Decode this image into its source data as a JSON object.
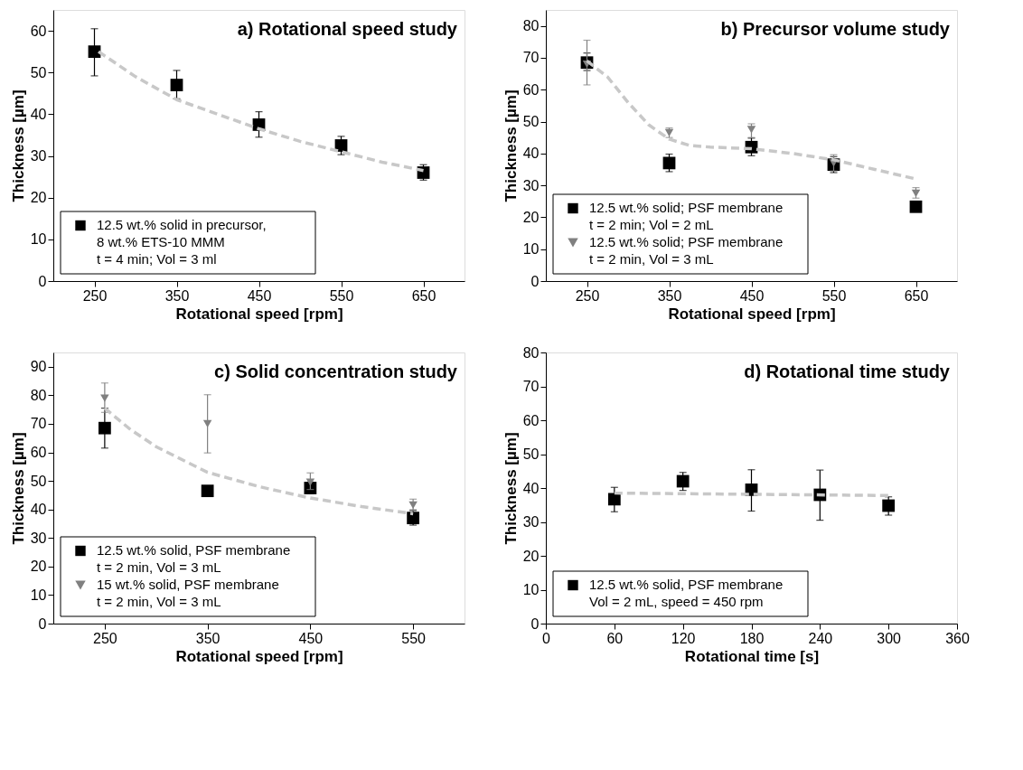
{
  "chart_data": [
    {
      "type": "scatter",
      "title": "a) Rotational speed study",
      "xlabel": "Rotational speed [rpm]",
      "ylabel": "Thickness [µm]",
      "xlim": [
        200,
        700
      ],
      "xticks": [
        250,
        350,
        450,
        550,
        650
      ],
      "ylim": [
        0,
        65
      ],
      "yticks": [
        0,
        10,
        20,
        30,
        40,
        50,
        60
      ],
      "legend": "bottom left",
      "x": [
        250,
        350,
        450,
        550,
        650
      ],
      "series": [
        {
          "name": "12.5 wt.% solid in precursor,\n8 wt.% ETS-10 MMM\nt = 4 min; Vol = 3 ml",
          "color": "#000000",
          "marker": "square",
          "values": [
            55,
            47,
            37.5,
            32.5,
            26
          ],
          "errors": [
            [
              49.2,
              60.5
            ],
            [
              43.7,
              50.5
            ],
            [
              34.5,
              40.6
            ],
            [
              30.3,
              34.7
            ],
            [
              24.2,
              27.9
            ]
          ]
        },
        {
          "type": "line",
          "color": "#c8c8c8",
          "line_style": "dashed",
          "marker": "none",
          "x": [
            255,
            300,
            350,
            400,
            450,
            500,
            550,
            600,
            650
          ],
          "values": [
            55,
            49,
            43.5,
            40,
            36.5,
            33.5,
            31,
            28.5,
            26.5
          ]
        }
      ]
    },
    {
      "type": "scatter",
      "title": "b) Precursor volume study",
      "xlabel": "Rotational speed [rpm]",
      "ylabel": "Thickness [µm]",
      "xlim": [
        200,
        700
      ],
      "xticks": [
        250,
        350,
        450,
        550,
        650
      ],
      "ylim": [
        0,
        85
      ],
      "yticks": [
        0,
        10,
        20,
        30,
        40,
        50,
        60,
        70,
        80
      ],
      "legend": "bottom left",
      "x": [
        250,
        350,
        450,
        550,
        650
      ],
      "series": [
        {
          "name": "12.5 wt.% solid; PSF membrane\nt = 2 min; Vol = 2 mL",
          "color": "#000000",
          "marker": "square",
          "values": [
            68.5,
            37,
            42,
            36.5,
            23.3
          ],
          "errors": [
            [
              66,
              71.5
            ],
            [
              34.3,
              39.8
            ],
            [
              39.3,
              44.8
            ],
            [
              34,
              39
            ],
            null
          ]
        },
        {
          "name": "12.5 wt.% solid; PSF membrane\nt = 2 min, Vol = 3 mL",
          "color": "#808080",
          "marker": "triangle",
          "values": [
            68,
            46.5,
            47.5,
            37,
            27.5
          ],
          "errors": [
            [
              61.5,
              75.5
            ],
            [
              45,
              48
            ],
            [
              45,
              49.3
            ],
            [
              34.5,
              39.6
            ],
            [
              26,
              29.3
            ]
          ]
        },
        {
          "type": "line",
          "color": "#c8c8c8",
          "line_style": "dashed",
          "marker": "none",
          "x": [
            250,
            275,
            300,
            325,
            350,
            375,
            400,
            450,
            500,
            550,
            600,
            650
          ],
          "values": [
            69,
            64,
            56,
            49,
            44.5,
            42.5,
            42,
            41.5,
            40,
            38,
            35,
            32
          ]
        }
      ]
    },
    {
      "type": "scatter",
      "title": "c) Solid concentration study",
      "xlabel": "Rotational speed [rpm]",
      "ylabel": "Thickness [µm]",
      "xlim": [
        200,
        600
      ],
      "xticks": [
        250,
        350,
        450,
        550
      ],
      "ylim": [
        0,
        95
      ],
      "yticks": [
        0,
        10,
        20,
        30,
        40,
        50,
        60,
        70,
        80,
        90
      ],
      "legend": "bottom left",
      "x": [
        250,
        350,
        450,
        550
      ],
      "series": [
        {
          "name": "12.5 wt.% solid, PSF membrane\nt = 2 min, Vol = 3 mL",
          "color": "#000000",
          "marker": "square",
          "values": [
            68.5,
            46.5,
            47.5,
            37
          ],
          "errors": [
            [
              61.5,
              75.5
            ],
            null,
            [
              45.5,
              49.5
            ],
            [
              34.5,
              39.8
            ]
          ]
        },
        {
          "name": "15 wt.% solid, PSF membrane\nt = 2 min, Vol = 3 mL",
          "color": "#808080",
          "marker": "triangle",
          "values": [
            79,
            70,
            49.5,
            41.5
          ],
          "errors": [
            [
              74,
              84.3
            ],
            [
              59.8,
              80.2
            ],
            [
              47,
              52.8
            ],
            [
              39.5,
              43.6
            ]
          ]
        },
        {
          "type": "line",
          "color": "#c8c8c8",
          "line_style": "dashed",
          "marker": "none",
          "x": [
            250,
            275,
            300,
            350,
            400,
            450,
            500,
            550
          ],
          "values": [
            75.5,
            68,
            62,
            53,
            48,
            44,
            41,
            38.5
          ]
        }
      ]
    },
    {
      "type": "scatter",
      "title": "d) Rotational time study",
      "xlabel": "Rotational time [s]",
      "ylabel": "Thickness [µm]",
      "xlim": [
        0,
        360
      ],
      "xticks": [
        0,
        60,
        120,
        180,
        240,
        300,
        360
      ],
      "ylim": [
        0,
        80
      ],
      "yticks": [
        0,
        10,
        20,
        30,
        40,
        50,
        60,
        70,
        80
      ],
      "legend": "bottom left",
      "x": [
        60,
        120,
        180,
        240,
        300
      ],
      "series": [
        {
          "name": "12.5 wt.% solid, PSF membrane\nVol = 2 mL, speed = 450 rpm",
          "color": "#000000",
          "marker": "square",
          "values": [
            36.7,
            42,
            39.5,
            38,
            34.8
          ],
          "errors": [
            [
              33,
              40.2
            ],
            [
              39.3,
              44.6
            ],
            [
              33.2,
              45.4
            ],
            [
              30.5,
              45.3
            ],
            [
              32,
              37.4
            ]
          ]
        },
        {
          "type": "line",
          "color": "#c8c8c8",
          "line_style": "dashed",
          "marker": "none",
          "x": [
            60,
            300
          ],
          "values": [
            38.5,
            37.8
          ]
        }
      ]
    }
  ]
}
